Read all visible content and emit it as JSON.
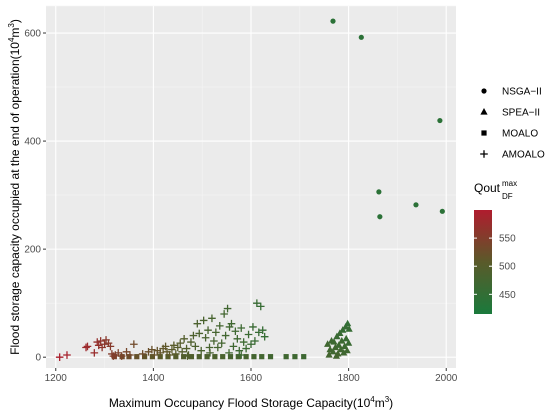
{
  "chart_data": {
    "type": "scatter",
    "xlabel": {
      "prefix": "Maximum Occupancy Flood Storage Capacity(10",
      "sup": "4",
      "suffix": "m",
      "sup2": "3",
      "end": ")"
    },
    "ylabel": {
      "prefix": "Flood storage capacity occupied at the end of operation(10",
      "sup": "4",
      "suffix": "m",
      "sup2": "3",
      "end": ")"
    },
    "xlim": [
      1180,
      2020
    ],
    "ylim": [
      -20,
      650
    ],
    "x_ticks": [
      1200,
      1400,
      1600,
      1800,
      2000
    ],
    "y_ticks": [
      0,
      200,
      400,
      600
    ],
    "grid": true,
    "legend_shape": {
      "position": "right",
      "entries": [
        {
          "label": "NSGA−II",
          "shape": "circle"
        },
        {
          "label": "SPEA−II",
          "shape": "triangle"
        },
        {
          "label": "MOALO",
          "shape": "square"
        },
        {
          "label": "AMOALO",
          "shape": "plus"
        }
      ]
    },
    "legend_color": {
      "title_main": "Qout",
      "title_sup": "max",
      "title_sub": "DF",
      "ticks": [
        450,
        500,
        550
      ],
      "range": [
        415,
        600
      ],
      "colors": {
        "low": "#1a7a3c",
        "mid": "#5a5a2a",
        "high": "#b01c2e"
      }
    },
    "series": [
      {
        "name": "NSGA−II",
        "shape": "circle",
        "points": [
          {
            "x": 1768,
            "y": 622,
            "q": 440
          },
          {
            "x": 1826,
            "y": 592,
            "q": 440
          },
          {
            "x": 1987,
            "y": 438,
            "q": 440
          },
          {
            "x": 1862,
            "y": 306,
            "q": 440
          },
          {
            "x": 1864,
            "y": 260,
            "q": 440
          },
          {
            "x": 1938,
            "y": 282,
            "q": 440
          },
          {
            "x": 1992,
            "y": 270,
            "q": 440
          }
        ]
      },
      {
        "name": "SPEA−II",
        "shape": "triangle",
        "points": [
          {
            "x": 1757,
            "y": 24,
            "q": 470
          },
          {
            "x": 1762,
            "y": 14,
            "q": 470
          },
          {
            "x": 1765,
            "y": 30,
            "q": 465
          },
          {
            "x": 1768,
            "y": 10,
            "q": 470
          },
          {
            "x": 1770,
            "y": 28,
            "q": 465
          },
          {
            "x": 1773,
            "y": 18,
            "q": 470
          },
          {
            "x": 1776,
            "y": 38,
            "q": 460
          },
          {
            "x": 1778,
            "y": 6,
            "q": 475
          },
          {
            "x": 1780,
            "y": 22,
            "q": 465
          },
          {
            "x": 1782,
            "y": 44,
            "q": 460
          },
          {
            "x": 1784,
            "y": 14,
            "q": 470
          },
          {
            "x": 1786,
            "y": 30,
            "q": 465
          },
          {
            "x": 1788,
            "y": 50,
            "q": 455
          },
          {
            "x": 1790,
            "y": 8,
            "q": 470
          },
          {
            "x": 1792,
            "y": 20,
            "q": 465
          },
          {
            "x": 1794,
            "y": 56,
            "q": 455
          },
          {
            "x": 1795,
            "y": 34,
            "q": 460
          },
          {
            "x": 1797,
            "y": 12,
            "q": 470
          },
          {
            "x": 1798,
            "y": 62,
            "q": 450
          },
          {
            "x": 1800,
            "y": 26,
            "q": 460
          },
          {
            "x": 1801,
            "y": 52,
            "q": 455
          },
          {
            "x": 1760,
            "y": 4,
            "q": 475
          },
          {
            "x": 1775,
            "y": 2,
            "q": 475
          }
        ]
      },
      {
        "name": "MOALO",
        "shape": "square",
        "points": [
          {
            "x": 1320,
            "y": 1,
            "q": 540
          },
          {
            "x": 1336,
            "y": 1,
            "q": 530
          },
          {
            "x": 1350,
            "y": 1,
            "q": 525
          },
          {
            "x": 1366,
            "y": 1,
            "q": 520
          },
          {
            "x": 1382,
            "y": 1,
            "q": 515
          },
          {
            "x": 1398,
            "y": 1,
            "q": 510
          },
          {
            "x": 1414,
            "y": 1,
            "q": 505
          },
          {
            "x": 1430,
            "y": 1,
            "q": 500
          },
          {
            "x": 1446,
            "y": 1,
            "q": 498
          },
          {
            "x": 1462,
            "y": 1,
            "q": 495
          },
          {
            "x": 1478,
            "y": 1,
            "q": 492
          },
          {
            "x": 1494,
            "y": 1,
            "q": 490
          },
          {
            "x": 1510,
            "y": 1,
            "q": 488
          },
          {
            "x": 1526,
            "y": 1,
            "q": 486
          },
          {
            "x": 1542,
            "y": 1,
            "q": 484
          },
          {
            "x": 1558,
            "y": 1,
            "q": 482
          },
          {
            "x": 1574,
            "y": 1,
            "q": 480
          },
          {
            "x": 1590,
            "y": 1,
            "q": 478
          },
          {
            "x": 1606,
            "y": 1,
            "q": 476
          },
          {
            "x": 1622,
            "y": 1,
            "q": 474
          },
          {
            "x": 1640,
            "y": 1,
            "q": 472
          },
          {
            "x": 1672,
            "y": 1,
            "q": 470
          },
          {
            "x": 1690,
            "y": 1,
            "q": 468
          },
          {
            "x": 1708,
            "y": 1,
            "q": 466
          }
        ]
      },
      {
        "name": "AMOALO",
        "shape": "plus",
        "points": [
          {
            "x": 1208,
            "y": 0,
            "q": 595
          },
          {
            "x": 1223,
            "y": 4,
            "q": 590
          },
          {
            "x": 1262,
            "y": 18,
            "q": 580
          },
          {
            "x": 1265,
            "y": 20,
            "q": 578
          },
          {
            "x": 1279,
            "y": 8,
            "q": 575
          },
          {
            "x": 1285,
            "y": 28,
            "q": 570
          },
          {
            "x": 1288,
            "y": 22,
            "q": 568
          },
          {
            "x": 1292,
            "y": 30,
            "q": 565
          },
          {
            "x": 1295,
            "y": 18,
            "q": 563
          },
          {
            "x": 1300,
            "y": 24,
            "q": 560
          },
          {
            "x": 1303,
            "y": 32,
            "q": 558
          },
          {
            "x": 1308,
            "y": 26,
            "q": 556
          },
          {
            "x": 1312,
            "y": 20,
            "q": 555
          },
          {
            "x": 1315,
            "y": 6,
            "q": 552
          },
          {
            "x": 1318,
            "y": 2,
            "q": 550
          },
          {
            "x": 1322,
            "y": 4,
            "q": 548
          },
          {
            "x": 1328,
            "y": 8,
            "q": 545
          },
          {
            "x": 1335,
            "y": 2,
            "q": 542
          },
          {
            "x": 1345,
            "y": 10,
            "q": 538
          },
          {
            "x": 1352,
            "y": 4,
            "q": 535
          },
          {
            "x": 1360,
            "y": 24,
            "q": 532
          },
          {
            "x": 1378,
            "y": 6,
            "q": 528
          },
          {
            "x": 1390,
            "y": 10,
            "q": 525
          },
          {
            "x": 1397,
            "y": 14,
            "q": 522
          },
          {
            "x": 1402,
            "y": 4,
            "q": 520
          },
          {
            "x": 1408,
            "y": 12,
            "q": 518
          },
          {
            "x": 1414,
            "y": 8,
            "q": 516
          },
          {
            "x": 1420,
            "y": 16,
            "q": 514
          },
          {
            "x": 1428,
            "y": 10,
            "q": 512
          },
          {
            "x": 1433,
            "y": 4,
            "q": 510
          },
          {
            "x": 1438,
            "y": 14,
            "q": 508
          },
          {
            "x": 1442,
            "y": 22,
            "q": 506
          },
          {
            "x": 1446,
            "y": 6,
            "q": 505
          },
          {
            "x": 1450,
            "y": 18,
            "q": 503
          },
          {
            "x": 1455,
            "y": 26,
            "q": 501
          },
          {
            "x": 1459,
            "y": 10,
            "q": 499
          },
          {
            "x": 1463,
            "y": 34,
            "q": 497
          },
          {
            "x": 1468,
            "y": 16,
            "q": 495
          },
          {
            "x": 1472,
            "y": 4,
            "q": 494
          },
          {
            "x": 1477,
            "y": 28,
            "q": 492
          },
          {
            "x": 1482,
            "y": 40,
            "q": 490
          },
          {
            "x": 1486,
            "y": 20,
            "q": 489
          },
          {
            "x": 1490,
            "y": 62,
            "q": 487
          },
          {
            "x": 1494,
            "y": 44,
            "q": 486
          },
          {
            "x": 1498,
            "y": 12,
            "q": 485
          },
          {
            "x": 1503,
            "y": 68,
            "q": 484
          },
          {
            "x": 1507,
            "y": 36,
            "q": 483
          },
          {
            "x": 1512,
            "y": 50,
            "q": 482
          },
          {
            "x": 1516,
            "y": 8,
            "q": 481
          },
          {
            "x": 1520,
            "y": 72,
            "q": 480
          },
          {
            "x": 1524,
            "y": 30,
            "q": 479
          },
          {
            "x": 1528,
            "y": 46,
            "q": 478
          },
          {
            "x": 1532,
            "y": 18,
            "q": 477
          },
          {
            "x": 1536,
            "y": 58,
            "q": 476
          },
          {
            "x": 1540,
            "y": 26,
            "q": 475
          },
          {
            "x": 1545,
            "y": 80,
            "q": 474
          },
          {
            "x": 1548,
            "y": 40,
            "q": 473
          },
          {
            "x": 1552,
            "y": 90,
            "q": 472
          },
          {
            "x": 1556,
            "y": 56,
            "q": 471
          },
          {
            "x": 1560,
            "y": 62,
            "q": 470
          },
          {
            "x": 1564,
            "y": 20,
            "q": 469
          },
          {
            "x": 1568,
            "y": 48,
            "q": 468
          },
          {
            "x": 1572,
            "y": 34,
            "q": 467
          },
          {
            "x": 1576,
            "y": 12,
            "q": 466
          },
          {
            "x": 1580,
            "y": 54,
            "q": 465
          },
          {
            "x": 1585,
            "y": 28,
            "q": 464
          },
          {
            "x": 1590,
            "y": 16,
            "q": 463
          },
          {
            "x": 1595,
            "y": 42,
            "q": 462
          },
          {
            "x": 1600,
            "y": 24,
            "q": 461
          },
          {
            "x": 1604,
            "y": 56,
            "q": 460
          },
          {
            "x": 1608,
            "y": 30,
            "q": 459
          },
          {
            "x": 1612,
            "y": 100,
            "q": 458
          },
          {
            "x": 1616,
            "y": 46,
            "q": 457
          },
          {
            "x": 1620,
            "y": 94,
            "q": 456
          },
          {
            "x": 1624,
            "y": 50,
            "q": 455
          },
          {
            "x": 1628,
            "y": 38,
            "q": 454
          },
          {
            "x": 1580,
            "y": 4,
            "q": 464
          },
          {
            "x": 1555,
            "y": 8,
            "q": 470
          },
          {
            "x": 1515,
            "y": 18,
            "q": 481
          },
          {
            "x": 1470,
            "y": 2,
            "q": 494
          },
          {
            "x": 1425,
            "y": 20,
            "q": 512
          }
        ]
      }
    ]
  }
}
